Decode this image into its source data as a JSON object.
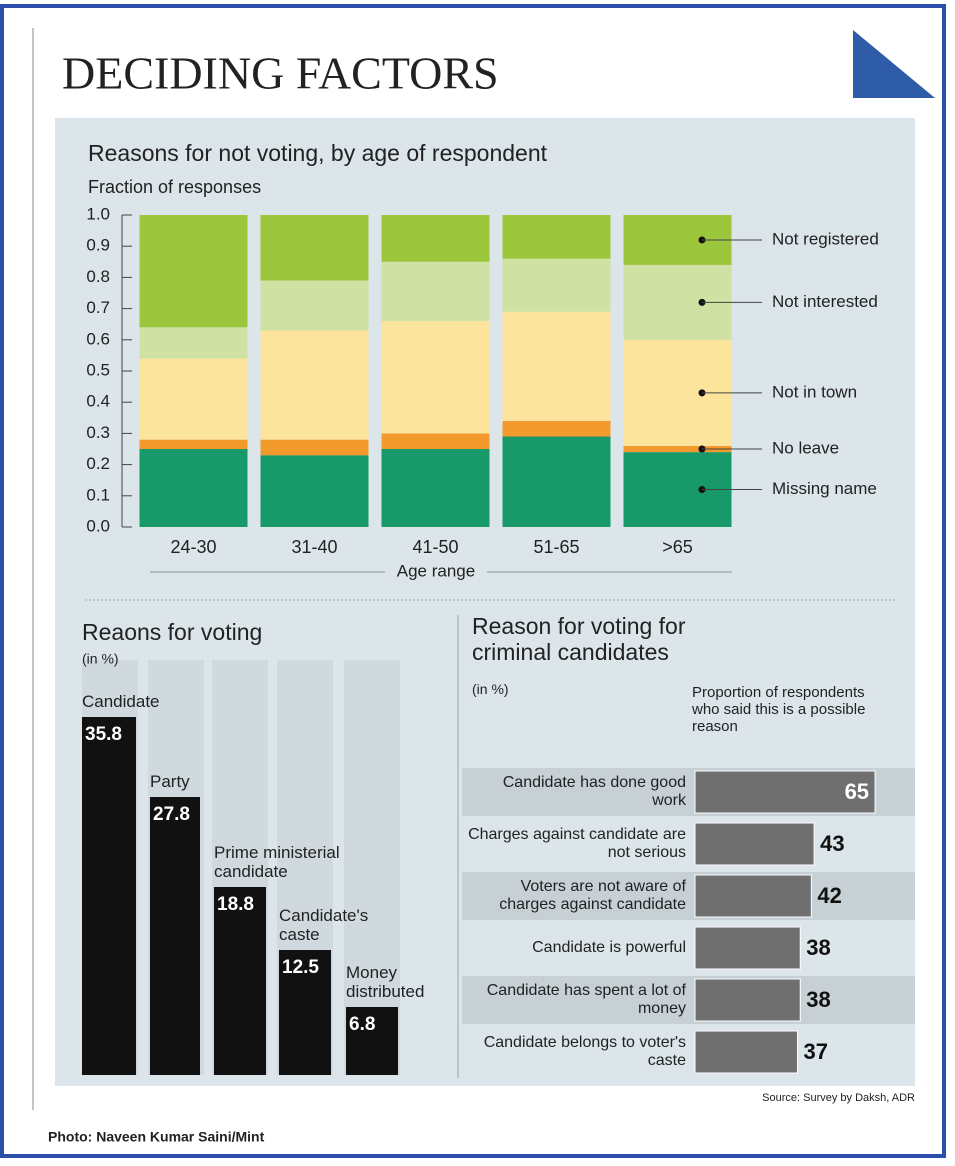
{
  "title": "DECIDING FACTORS",
  "source": "Source: Survey by Daksh, ADR",
  "credit": "Photo: Naveen Kumar Saini/Mint",
  "chart_data": [
    {
      "type": "stacked-bar",
      "title": "Reasons for not voting, by age of respondent",
      "y_label": "Fraction of responses",
      "x_label": "Age range",
      "categories": [
        "24-30",
        "31-40",
        "41-50",
        "51-65",
        ">65"
      ],
      "series": [
        {
          "name": "Missing name",
          "color": "#17996a",
          "values": [
            0.25,
            0.23,
            0.25,
            0.29,
            0.24
          ]
        },
        {
          "name": "No leave",
          "color": "#f39a2c",
          "values": [
            0.03,
            0.05,
            0.05,
            0.05,
            0.02
          ]
        },
        {
          "name": "Not in town",
          "color": "#fde49c",
          "values": [
            0.26,
            0.35,
            0.36,
            0.35,
            0.34
          ]
        },
        {
          "name": "Not interested",
          "color": "#cfe1a3",
          "values": [
            0.1,
            0.16,
            0.19,
            0.17,
            0.24
          ]
        },
        {
          "name": "Not registered",
          "color": "#9cc63b",
          "values": [
            0.36,
            0.21,
            0.15,
            0.14,
            0.16
          ]
        }
      ],
      "ylim": [
        0,
        1
      ],
      "yticks": [
        {
          "value": 0,
          "label": "0.0"
        },
        0.1,
        0.2,
        0.3,
        0.4,
        0.5,
        0.6,
        0.7,
        0.8,
        0.9,
        {
          "value": 1,
          "label": "1.0"
        }
      ]
    },
    {
      "type": "bar",
      "title": "Reaons for voting",
      "subtitle": "(in %)",
      "categories": [
        "Candidate",
        "Party",
        "Prime ministerial candidate",
        "Candidate's caste",
        "Money distributed"
      ],
      "values": [
        35.8,
        27.8,
        18.8,
        12.5,
        6.8
      ],
      "color": "#111111"
    },
    {
      "type": "hbar",
      "title": "Reason for voting for criminal candidates",
      "subtitle": "(in %)",
      "note": "Proportion of respondents who said this is a possible reason",
      "categories": [
        "Candidate has done good work",
        "Charges against candidate are not serious",
        "Voters are not aware of charges against candidate",
        "Candidate is powerful",
        "Candidate has spent a lot of money",
        "Candidate belongs to voter's caste"
      ],
      "values": [
        65,
        43,
        42,
        38,
        38,
        37
      ],
      "color": "#6f6f6f"
    }
  ]
}
